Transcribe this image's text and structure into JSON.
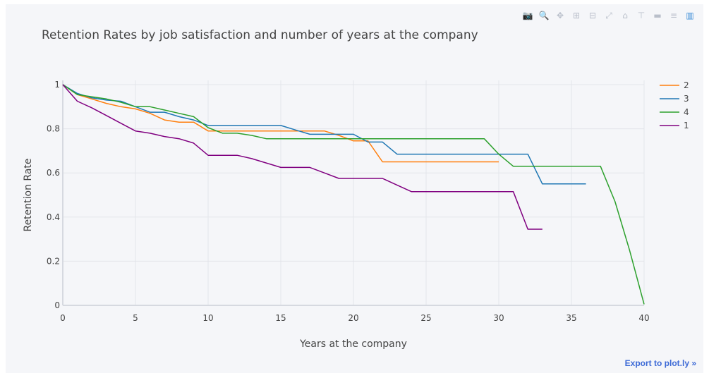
{
  "toolbar": {
    "buttons": [
      {
        "name": "camera-icon",
        "glyph": "📷"
      },
      {
        "name": "zoom-icon",
        "glyph": "🔍"
      },
      {
        "name": "pan-icon",
        "glyph": "✥"
      },
      {
        "name": "zoom-in-icon",
        "glyph": "⊞"
      },
      {
        "name": "zoom-out-icon",
        "glyph": "⊟"
      },
      {
        "name": "autoscale-icon",
        "glyph": "⤢"
      },
      {
        "name": "home-icon",
        "glyph": "⌂"
      },
      {
        "name": "spike-lines-icon",
        "glyph": "⊤"
      },
      {
        "name": "hover-closest-icon",
        "glyph": "▬"
      },
      {
        "name": "hover-compare-icon",
        "glyph": "≡"
      },
      {
        "name": "plotly-logo-icon",
        "glyph": "▥"
      }
    ]
  },
  "export_link": "Export to plot.ly »",
  "chart_data": {
    "type": "line",
    "title": "Retention Rates by job satisfaction and number of years at the company",
    "xlabel": "Years at the company",
    "ylabel": "Retention Rate",
    "xlim": [
      0,
      40
    ],
    "ylim": [
      0,
      1
    ],
    "xticks": [
      0,
      5,
      10,
      15,
      20,
      25,
      30,
      35,
      40
    ],
    "yticks": [
      0,
      0.2,
      0.4,
      0.6,
      0.8,
      1
    ],
    "ytick_labels": [
      "0",
      "0.2",
      "0.4",
      "0.6",
      "0.8",
      "1"
    ],
    "grid": true,
    "legend_position": "top-right",
    "series": [
      {
        "name": "2",
        "color": "#ff7f0e",
        "x": [
          0,
          1,
          2,
          3,
          4,
          5,
          6,
          7,
          8,
          9,
          10,
          11,
          12,
          13,
          14,
          15,
          16,
          17,
          18,
          19,
          20,
          21,
          22,
          23,
          24,
          25,
          26,
          27,
          28,
          29,
          30
        ],
        "y": [
          1,
          0.955,
          0.935,
          0.915,
          0.9,
          0.89,
          0.87,
          0.84,
          0.83,
          0.83,
          0.79,
          0.79,
          0.79,
          0.79,
          0.79,
          0.79,
          0.79,
          0.79,
          0.79,
          0.77,
          0.745,
          0.745,
          0.65,
          0.65,
          0.65,
          0.65,
          0.65,
          0.65,
          0.65,
          0.65,
          0.65
        ]
      },
      {
        "name": "3",
        "color": "#1f77b4",
        "x": [
          0,
          1,
          2,
          3,
          4,
          5,
          6,
          7,
          8,
          9,
          10,
          11,
          12,
          13,
          14,
          15,
          16,
          17,
          18,
          19,
          20,
          21,
          22,
          23,
          24,
          25,
          26,
          27,
          28,
          29,
          30,
          31,
          32,
          33,
          34,
          35,
          36
        ],
        "y": [
          1,
          0.96,
          0.94,
          0.93,
          0.925,
          0.9,
          0.875,
          0.875,
          0.855,
          0.84,
          0.815,
          0.815,
          0.815,
          0.815,
          0.815,
          0.815,
          0.795,
          0.775,
          0.775,
          0.775,
          0.775,
          0.74,
          0.74,
          0.685,
          0.685,
          0.685,
          0.685,
          0.685,
          0.685,
          0.685,
          0.685,
          0.685,
          0.685,
          0.55,
          0.55,
          0.55,
          0.55
        ]
      },
      {
        "name": "4",
        "color": "#2ca02c",
        "x": [
          0,
          1,
          2,
          3,
          4,
          5,
          6,
          7,
          8,
          9,
          10,
          11,
          12,
          13,
          14,
          15,
          16,
          17,
          18,
          19,
          20,
          21,
          22,
          23,
          24,
          25,
          26,
          27,
          28,
          29,
          30,
          31,
          32,
          33,
          34,
          35,
          36,
          37,
          38,
          39,
          40
        ],
        "y": [
          1,
          0.955,
          0.945,
          0.935,
          0.92,
          0.9,
          0.9,
          0.885,
          0.87,
          0.855,
          0.805,
          0.78,
          0.78,
          0.77,
          0.755,
          0.755,
          0.755,
          0.755,
          0.755,
          0.755,
          0.755,
          0.755,
          0.755,
          0.755,
          0.755,
          0.755,
          0.755,
          0.755,
          0.755,
          0.755,
          0.685,
          0.63,
          0.63,
          0.63,
          0.63,
          0.63,
          0.63,
          0.63,
          0.47,
          0.25,
          0.005
        ]
      },
      {
        "name": "1",
        "color": "#800080",
        "x": [
          0,
          1,
          2,
          3,
          4,
          5,
          6,
          7,
          8,
          9,
          10,
          11,
          12,
          13,
          14,
          15,
          16,
          17,
          18,
          19,
          20,
          21,
          22,
          23,
          24,
          25,
          26,
          27,
          28,
          29,
          30,
          31,
          32,
          33
        ],
        "y": [
          1,
          0.925,
          0.895,
          0.86,
          0.825,
          0.79,
          0.78,
          0.765,
          0.755,
          0.735,
          0.68,
          0.68,
          0.68,
          0.665,
          0.645,
          0.625,
          0.625,
          0.625,
          0.6,
          0.575,
          0.575,
          0.575,
          0.575,
          0.545,
          0.515,
          0.515,
          0.515,
          0.515,
          0.515,
          0.515,
          0.515,
          0.515,
          0.345,
          0.345
        ]
      }
    ]
  }
}
